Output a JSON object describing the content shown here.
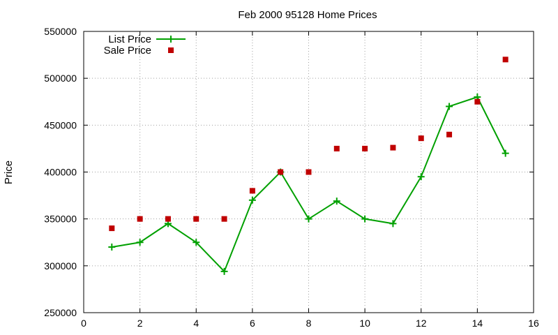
{
  "chart_data": {
    "type": "line",
    "title": "Feb 2000 95128 Home Prices",
    "xlabel": "",
    "ylabel": "Price",
    "xlim": [
      0,
      16
    ],
    "ylim": [
      250000,
      550000
    ],
    "xticks": [
      0,
      2,
      4,
      6,
      8,
      10,
      12,
      14,
      16
    ],
    "yticks": [
      250000,
      300000,
      350000,
      400000,
      450000,
      500000,
      550000
    ],
    "grid": true,
    "legend_position": "top-left",
    "series": [
      {
        "name": "List Price",
        "style": "line-points",
        "marker": "plus",
        "color": "#00a000",
        "x": [
          1,
          2,
          3,
          4,
          5,
          6,
          7,
          8,
          9,
          10,
          11,
          12,
          13,
          14,
          15
        ],
        "y": [
          320000,
          325000,
          345000,
          325000,
          294000,
          370000,
          400000,
          350000,
          369000,
          350000,
          345000,
          395000,
          470000,
          480000,
          420000
        ]
      },
      {
        "name": "Sale Price",
        "style": "points",
        "marker": "square",
        "color": "#c00000",
        "x": [
          1,
          2,
          3,
          4,
          5,
          6,
          7,
          8,
          9,
          10,
          11,
          12,
          13,
          14,
          15
        ],
        "y": [
          340000,
          350000,
          350000,
          350000,
          350000,
          380000,
          400000,
          400000,
          425000,
          425000,
          426000,
          436000,
          440000,
          475000,
          520000
        ]
      }
    ]
  }
}
